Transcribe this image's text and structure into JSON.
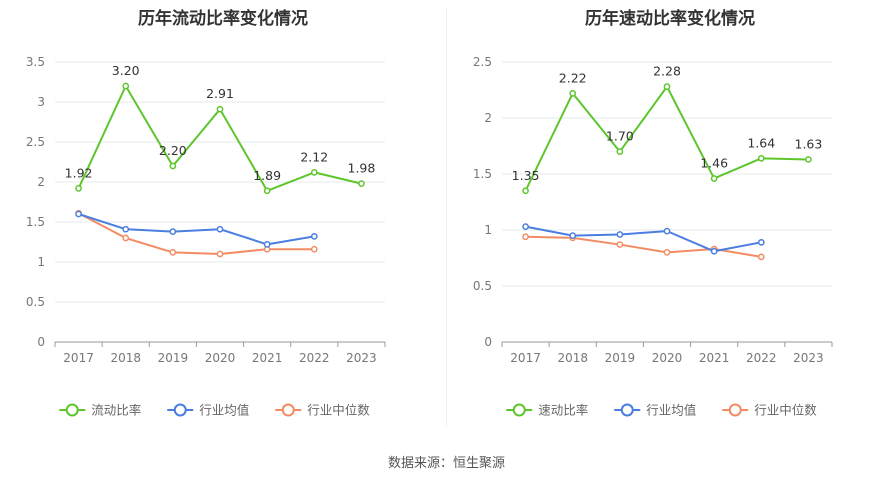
{
  "source_text": "数据来源：恒生聚源",
  "colors": {
    "company": "#5ec62d",
    "avg": "#4a7ee0",
    "median": "#f38c63"
  },
  "chart_data": [
    {
      "type": "line",
      "title": "历年流动比率变化情况",
      "x": [
        "2017",
        "2018",
        "2019",
        "2020",
        "2021",
        "2022",
        "2023"
      ],
      "ylim": [
        0,
        3.5
      ],
      "yticks": [
        "0",
        "0.5",
        "1",
        "1.5",
        "2",
        "2.5",
        "3",
        "3.5"
      ],
      "grid": true,
      "legend_position": "bottom",
      "series": [
        {
          "name": "流动比率",
          "values": [
            1.92,
            3.2,
            2.2,
            2.91,
            1.89,
            2.12,
            1.98
          ],
          "labels": [
            "1.92",
            "3.20",
            "2.20",
            "2.91",
            "1.89",
            "2.12",
            "1.98"
          ]
        },
        {
          "name": "行业均值",
          "values": [
            1.6,
            1.41,
            1.38,
            1.41,
            1.22,
            1.32,
            null
          ]
        },
        {
          "name": "行业中位数",
          "values": [
            1.61,
            1.3,
            1.12,
            1.1,
            1.16,
            1.16,
            null
          ]
        }
      ]
    },
    {
      "type": "line",
      "title": "历年速动比率变化情况",
      "x": [
        "2017",
        "2018",
        "2019",
        "2020",
        "2021",
        "2022",
        "2023"
      ],
      "ylim": [
        0,
        2.5
      ],
      "yticks": [
        "0",
        "0.5",
        "1",
        "1.5",
        "2",
        "2.5"
      ],
      "grid": true,
      "legend_position": "bottom",
      "series": [
        {
          "name": "速动比率",
          "values": [
            1.35,
            2.22,
            1.7,
            2.28,
            1.46,
            1.64,
            1.63
          ],
          "labels": [
            "1.35",
            "2.22",
            "1.70",
            "2.28",
            "1.46",
            "1.64",
            "1.63"
          ]
        },
        {
          "name": "行业均值",
          "values": [
            1.03,
            0.95,
            0.96,
            0.99,
            0.81,
            0.89,
            null
          ]
        },
        {
          "name": "行业中位数",
          "values": [
            0.94,
            0.93,
            0.87,
            0.8,
            0.83,
            0.76,
            null
          ]
        }
      ]
    }
  ]
}
